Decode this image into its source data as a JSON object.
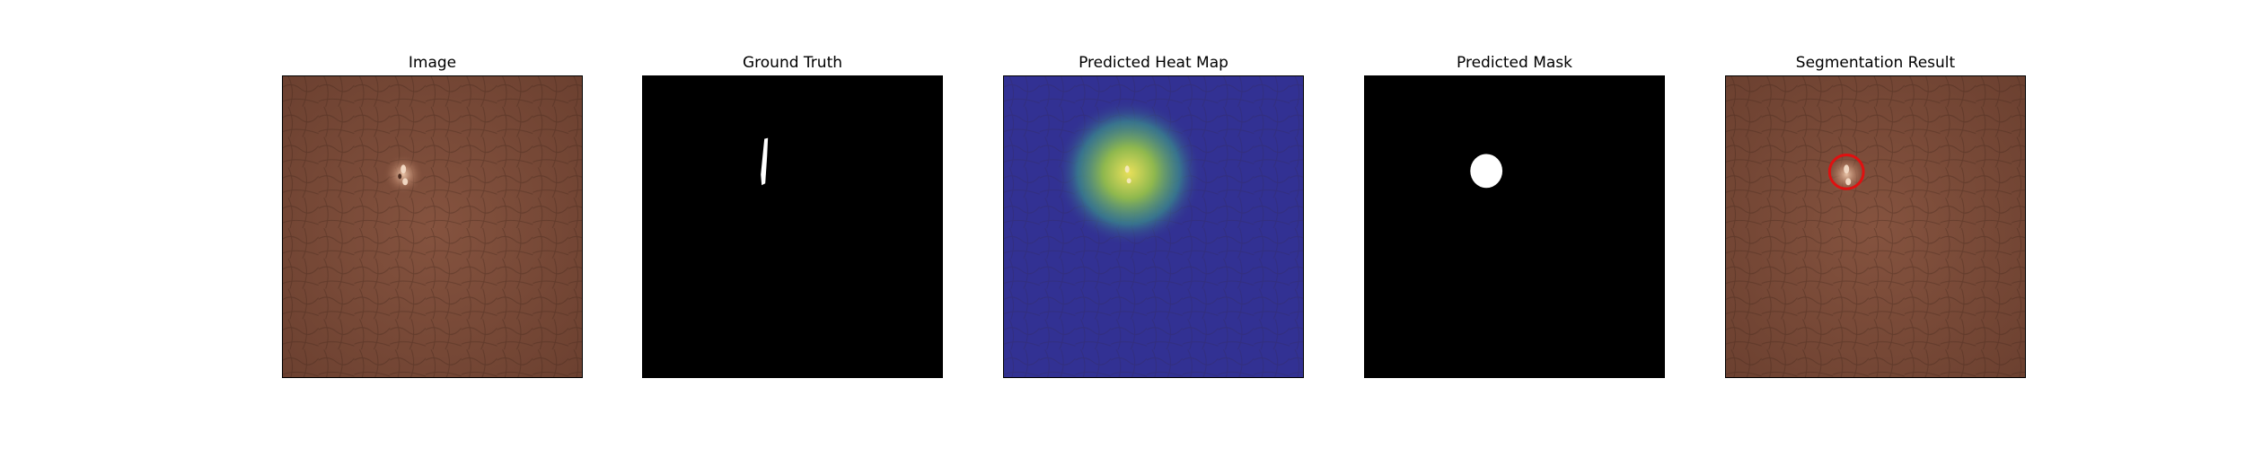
{
  "figure": {
    "panels": [
      {
        "title": "Image",
        "content": "leather-photo"
      },
      {
        "title": "Ground Truth",
        "content": "binary-mask"
      },
      {
        "title": "Predicted Heat Map",
        "content": "heatmap-overlay"
      },
      {
        "title": "Predicted Mask",
        "content": "binary-mask"
      },
      {
        "title": "Segmentation Result",
        "content": "leather-photo-with-contour"
      }
    ]
  },
  "colors": {
    "leather": "#7b4b38",
    "leather_dark": "#5a3326",
    "mask_background": "#000000",
    "mask_foreground": "#ffffff",
    "heatmap_low": "#2f2f8a",
    "heatmap_high": "#f2e65a",
    "contour": "#e01010"
  }
}
